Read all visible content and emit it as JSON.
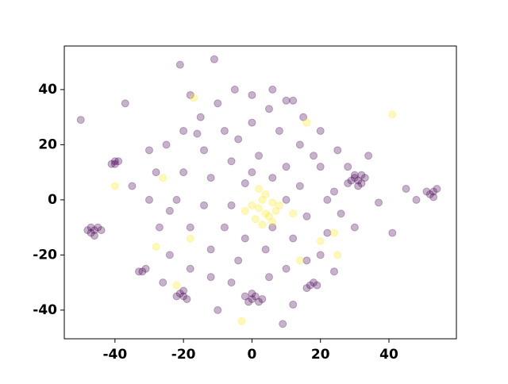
{
  "chart_data": {
    "type": "scatter",
    "xlim": [
      -54.8,
      59.7
    ],
    "ylim": [
      -50.4,
      55.8
    ],
    "xticks": [
      -40,
      -20,
      0,
      20,
      40
    ],
    "yticks": [
      -40,
      -20,
      0,
      20,
      40
    ],
    "grid": false,
    "alpha": 0.3,
    "series": [
      {
        "color": "#440154",
        "x": [
          -46,
          -47,
          -45,
          -48,
          -46,
          -44,
          -47,
          -40,
          -41,
          -39,
          -40,
          -20,
          -21,
          -19,
          -22,
          -20,
          -32,
          -31,
          -33,
          0,
          1,
          -1,
          2,
          -2,
          0,
          3,
          17,
          18,
          16,
          19,
          31,
          30,
          32,
          29,
          33,
          31,
          30,
          28,
          32,
          53,
          52,
          54,
          51,
          53,
          -50,
          -37,
          -21,
          -11,
          9,
          45,
          48,
          41,
          37,
          -25,
          -20,
          -15,
          -10,
          -5,
          0,
          5,
          10,
          15,
          20,
          25,
          28,
          -28,
          -30,
          -27,
          -24,
          -18,
          -12,
          -6,
          5,
          10,
          16,
          22,
          26,
          24,
          20,
          14,
          8,
          0,
          -8,
          -14,
          -20,
          -22,
          -18,
          -12,
          -4,
          4,
          12,
          16,
          14,
          10,
          2,
          -6,
          -12,
          -14,
          -8,
          -2,
          6,
          10,
          6,
          -2,
          -6,
          0,
          18,
          -16,
          -24,
          20,
          -30,
          30,
          34,
          -35,
          24,
          -10,
          12,
          -26,
          6,
          -4,
          22,
          -18,
          12
        ],
        "values": [
          -11,
          -12,
          -10,
          -11,
          -13,
          -11,
          -10,
          14,
          13,
          14,
          13,
          -35,
          -34,
          -36,
          -35,
          -33,
          -26,
          -25,
          -26,
          -36,
          -35,
          -37,
          -37,
          -35,
          -34,
          -36,
          -31,
          -30,
          -32,
          -31,
          7,
          8,
          6,
          7,
          8,
          5,
          9,
          6,
          9,
          3,
          2,
          4,
          3,
          1,
          29,
          35,
          49,
          51,
          -45,
          4,
          0,
          -12,
          -1,
          20,
          25,
          30,
          35,
          40,
          38,
          33,
          36,
          30,
          25,
          18,
          12,
          10,
          0,
          -10,
          -20,
          -25,
          -28,
          -30,
          -28,
          -25,
          -22,
          -12,
          -5,
          3,
          12,
          20,
          25,
          28,
          25,
          18,
          10,
          0,
          -10,
          -18,
          -22,
          -18,
          -14,
          -6,
          5,
          12,
          16,
          14,
          8,
          -2,
          -10,
          -14,
          -10,
          0,
          8,
          6,
          -2,
          10,
          16,
          24,
          -4,
          -20,
          18,
          -10,
          16,
          5,
          -26,
          -40,
          -38,
          -30,
          40,
          22,
          0,
          38,
          36
        ]
      },
      {
        "color": "#fde725",
        "x": [
          2,
          4,
          0,
          6,
          3,
          5,
          1,
          7,
          -2,
          4,
          3,
          8,
          2,
          6,
          -3,
          41,
          -40,
          -17,
          25,
          20,
          14,
          -28,
          -22,
          16,
          -18,
          12,
          24,
          -26
        ],
        "values": [
          -3,
          -5,
          -2,
          -1,
          0,
          -6,
          -7,
          -4,
          -4,
          2,
          -9,
          -2,
          4,
          -8,
          -44,
          31,
          5,
          37,
          -20,
          -15,
          -22,
          -17,
          -31,
          28,
          -14,
          -5,
          -12,
          8
        ]
      }
    ]
  }
}
